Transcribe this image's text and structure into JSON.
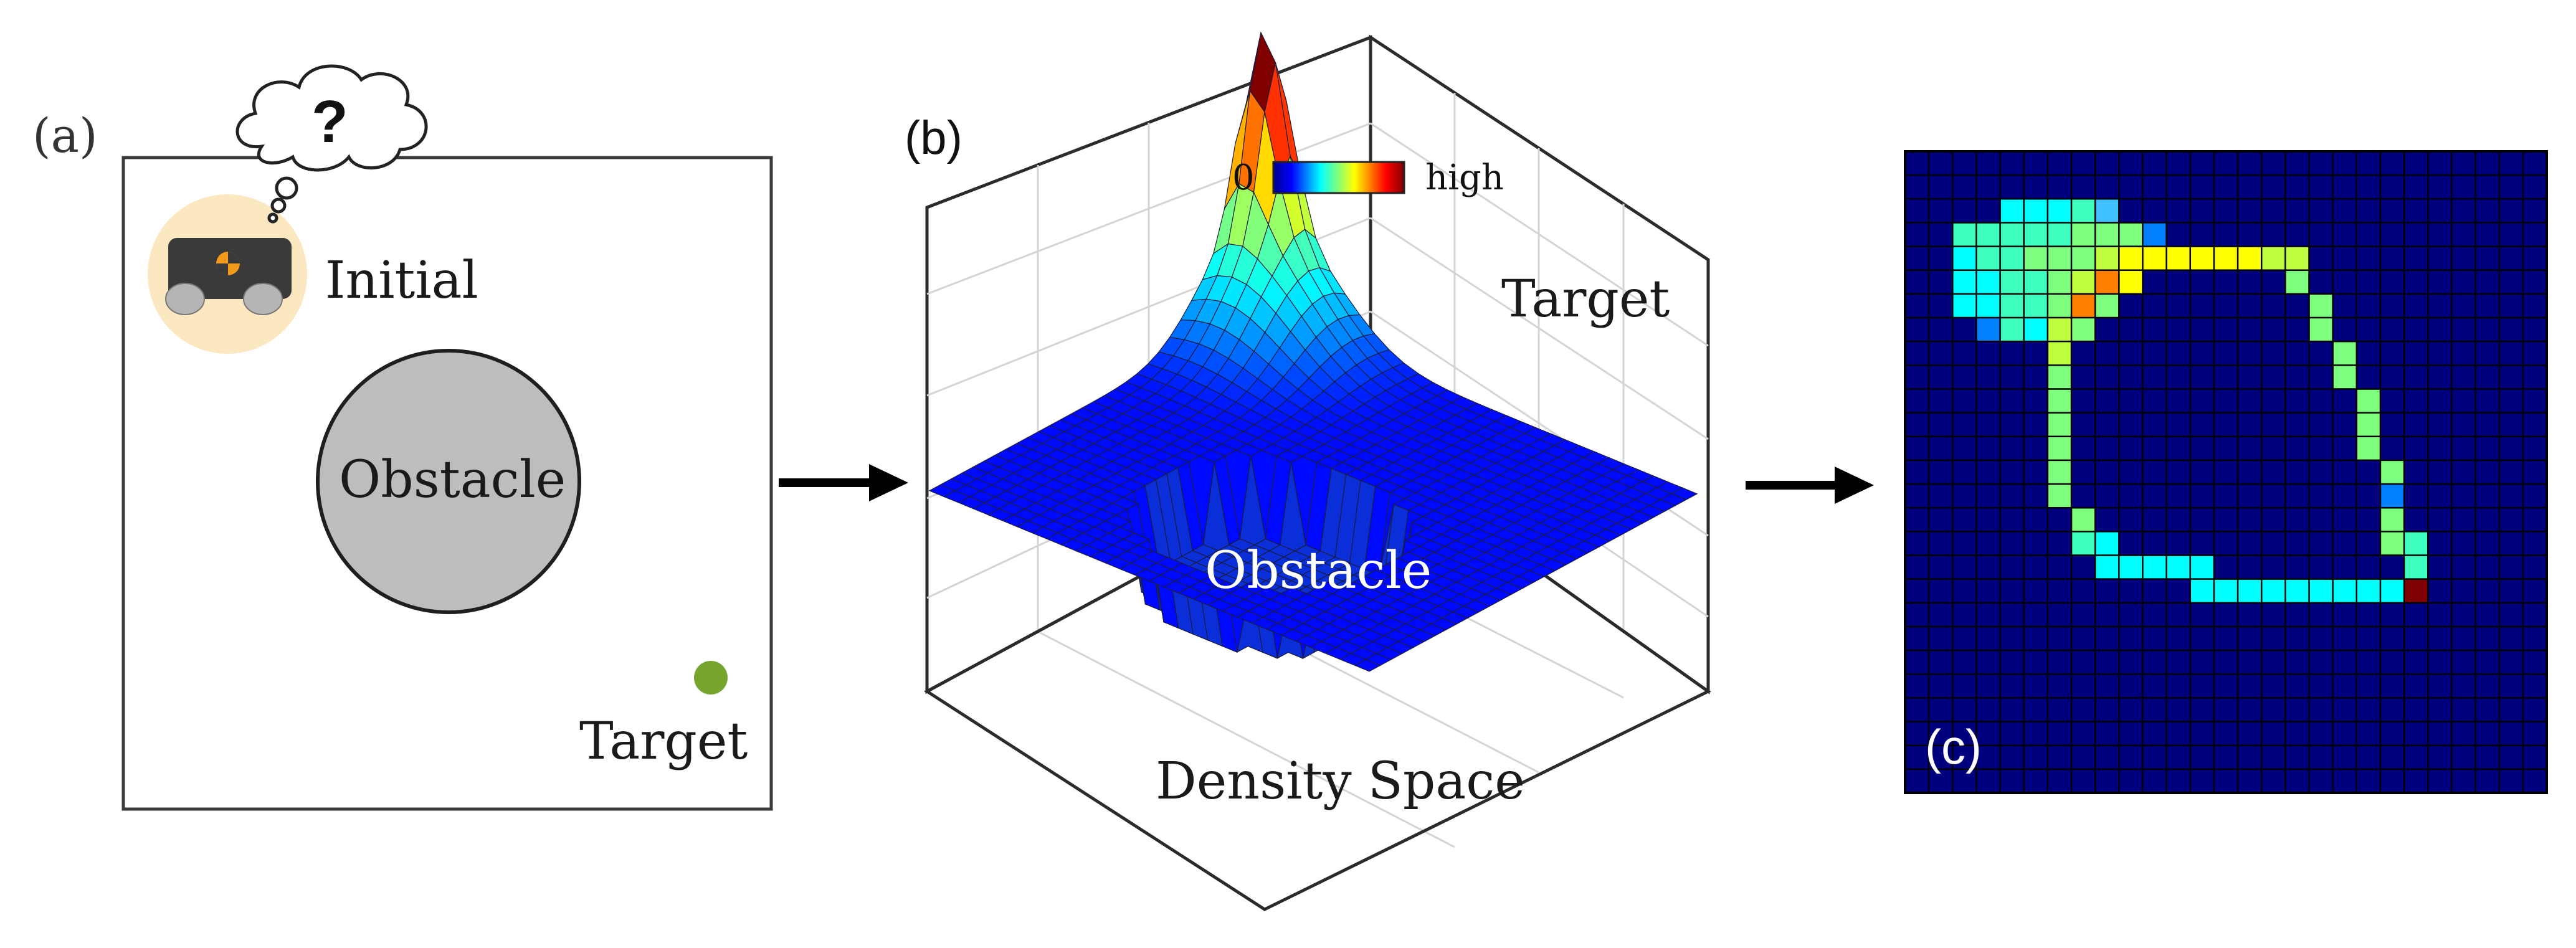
{
  "panel_a": {
    "tag": "(a)",
    "thought": "?",
    "initial_label": "Initial",
    "obstacle_label": "Obstacle",
    "target_label": "Target",
    "colors": {
      "obstacle": "#bdbdbd",
      "target": "#76a52e",
      "halo": "#fbe8c0",
      "robot": "#3a3a3a",
      "emblem": "#f29b1b"
    }
  },
  "panel_b": {
    "tag": "(b)",
    "colorbar_low": "0",
    "colorbar_high": "high",
    "target_label": "Target",
    "obstacle_label": "Obstacle",
    "caption": "Density Space",
    "colormap": "jet"
  },
  "panel_c": {
    "tag": "(c)",
    "grid": 27,
    "background_color": "#00007f",
    "colors": {
      "1": "#00ffff",
      "2": "#3fffbf",
      "3": "#7fff7f",
      "4": "#bfff3f",
      "5": "#ffff00",
      "6": "#ff8000",
      "7": "#7f0000",
      "8": "#0080ff",
      "9": "#40c0ff"
    }
  },
  "icons": [
    "thought-bubble-icon",
    "robot-icon",
    "arrow-right-icon"
  ]
}
